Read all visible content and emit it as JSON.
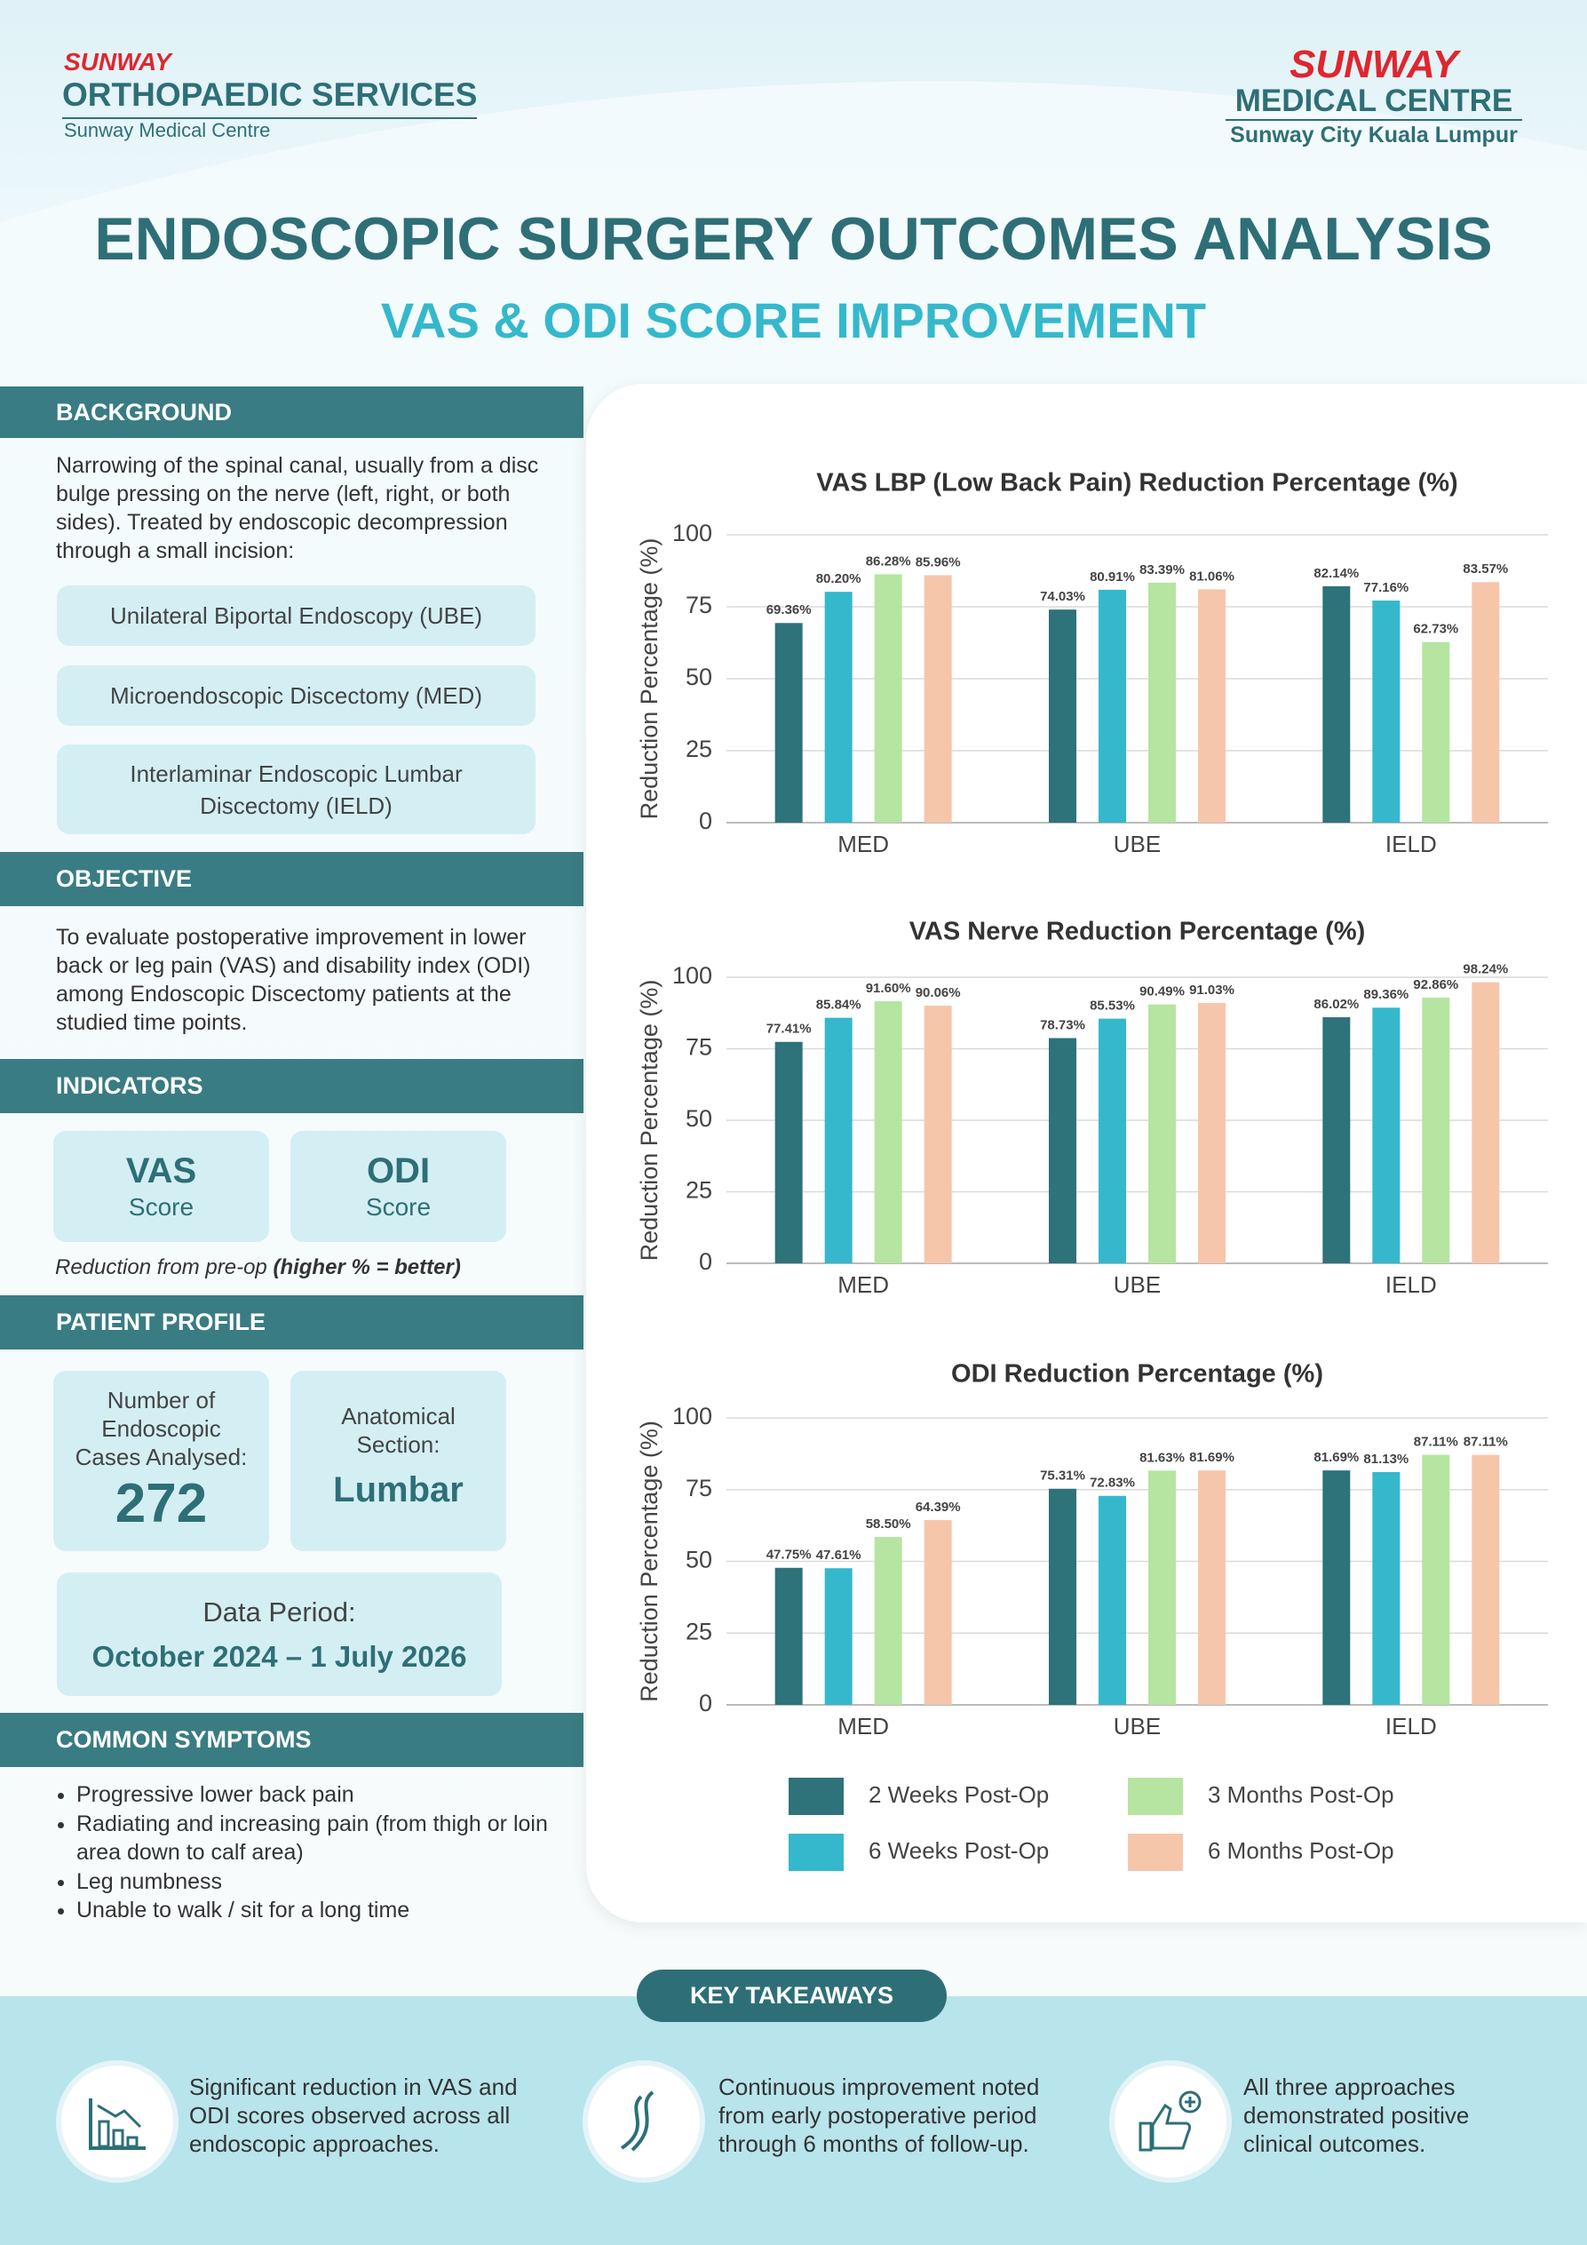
{
  "header": {
    "brand_left_top": "SUNWAY",
    "brand_left_main": "ORTHOPAEDIC SERVICES",
    "brand_left_sub": "Sunway Medical Centre",
    "brand_right_top": "SUNWAY",
    "brand_right_main": "MEDICAL CENTRE",
    "brand_right_sub": "Sunway City Kuala Lumpur",
    "title": "ENDOSCOPIC SURGERY OUTCOMES ANALYSIS",
    "subtitle": "VAS & ODI SCORE IMPROVEMENT"
  },
  "background": {
    "heading": "BACKGROUND",
    "text": "Narrowing of the spinal canal, usually from a disc bulge pressing on the nerve (left, right, or both sides). Treated by endoscopic decompression through a small incision:",
    "approaches": [
      "Unilateral Biportal Endoscopy (UBE)",
      "Microendoscopic Discectomy (MED)",
      "Interlaminar Endoscopic Lumbar Discectomy (IELD)"
    ]
  },
  "objective": {
    "heading": "OBJECTIVE",
    "text": "To evaluate postoperative improvement in lower back or leg pain (VAS) and disability index (ODI) among Endoscopic Discectomy patients at the studied time points."
  },
  "indicators": {
    "heading": "INDICATORS",
    "items": [
      {
        "name": "VAS",
        "unit": "Score"
      },
      {
        "name": "ODI",
        "unit": "Score"
      }
    ],
    "note": "Reduction from pre-op",
    "note_emphasis": "(higher % = better)"
  },
  "patient_profile": {
    "heading": "PATIENT PROFILE",
    "cases_label": "Number of Endoscopic Cases Analysed:",
    "cases_value": 272,
    "section_label": "Anatomical Section:",
    "section_value": "Lumbar",
    "period_label": "Data Period:",
    "period_value": "October 2024 – 1 July 2026"
  },
  "symptoms": {
    "heading": "COMMON SYMPTOMS",
    "items": [
      "Progressive lower back pain",
      "Radiating and increasing pain (from thigh or loin area down to calf area)",
      "Leg numbness",
      "Unable to walk / sit for a long time"
    ]
  },
  "key_takeaways": {
    "heading": "KEY TAKEAWAYS",
    "items": [
      "Significant reduction in VAS and ODI scores observed across all endoscopic approaches.",
      "Continuous improvement noted from early postoperative period through 6 months of follow-up.",
      "All three approaches demonstrated positive clinical outcomes."
    ]
  },
  "chart_data": [
    {
      "type": "bar",
      "title": "VAS LBP (Low Back Pain) Reduction Percentage (%)",
      "y_label": "Reduction Percentage (%)",
      "categories": [
        "MED",
        "UBE",
        "IELD"
      ],
      "ylim": [
        0,
        100
      ],
      "yticks": [
        0,
        25,
        50,
        75,
        100
      ],
      "grid": true,
      "series": [
        {
          "name": "2 Weeks Post-Op",
          "color": "#2e727a",
          "values": [
            69.36,
            74.03,
            82.14
          ],
          "value_labels": [
            "69.36%",
            "74.03%",
            "82.14%"
          ]
        },
        {
          "name": "6 Weeks Post-Op",
          "color": "#35b8cc",
          "values": [
            80.2,
            80.91,
            77.16
          ],
          "value_labels": [
            "80.20%",
            "80.91%",
            "77.16%"
          ]
        },
        {
          "name": "3 Months Post-Op",
          "color": "#b5e5a0",
          "values": [
            86.28,
            83.39,
            62.73
          ],
          "value_labels": [
            "86.28%",
            "83.39%",
            "62.73%"
          ]
        },
        {
          "name": "6 Months Post-Op",
          "color": "#f6c6ab",
          "values": [
            85.96,
            81.06,
            83.57
          ],
          "value_labels": [
            "85.96%",
            "81.06%",
            "83.57%"
          ]
        }
      ]
    },
    {
      "type": "bar",
      "title": "VAS Nerve Reduction Percentage (%)",
      "y_label": "Reduction Percentage (%)",
      "categories": [
        "MED",
        "UBE",
        "IELD"
      ],
      "ylim": [
        0,
        100
      ],
      "yticks": [
        0,
        25,
        50,
        75,
        100
      ],
      "grid": true,
      "series": [
        {
          "color": "#2e727a",
          "values": [
            77.41,
            78.73,
            86.02
          ],
          "value_labels": [
            "77.41%",
            "78.73%",
            "86.02%"
          ]
        },
        {
          "color": "#35b8cc",
          "values": [
            85.84,
            85.53,
            89.36
          ],
          "value_labels": [
            "85.84%",
            "85.53%",
            "89.36%"
          ]
        },
        {
          "color": "#b5e5a0",
          "values": [
            91.6,
            90.49,
            92.86
          ],
          "value_labels": [
            "91.60%",
            "90.49%",
            "92.86%"
          ]
        },
        {
          "color": "#f6c6ab",
          "values": [
            90.06,
            91.03,
            98.24
          ],
          "value_labels": [
            "90.06%",
            "91.03%",
            "98.24%"
          ]
        }
      ]
    },
    {
      "type": "bar",
      "title": "ODI Reduction Percentage (%)",
      "y_label": "Reduction Percentage (%)",
      "categories": [
        "MED",
        "UBE",
        "IELD"
      ],
      "ylim": [
        0,
        100
      ],
      "yticks": [
        0,
        25,
        50,
        75,
        100
      ],
      "grid": true,
      "series": [
        {
          "color": "#2e727a",
          "values": [
            47.75,
            75.31,
            81.69
          ],
          "value_labels": [
            "47.75%",
            "75.31%",
            "81.69%"
          ]
        },
        {
          "color": "#35b8cc",
          "values": [
            47.61,
            72.83,
            81.13
          ],
          "value_labels": [
            "47.61%",
            "72.83%",
            "81.13%"
          ]
        },
        {
          "color": "#b5e5a0",
          "values": [
            58.5,
            81.63,
            87.11
          ],
          "value_labels": [
            "58.50%",
            "81.63%",
            "87.11%"
          ]
        },
        {
          "color": "#f6c6ab",
          "values": [
            64.39,
            81.69,
            87.11
          ],
          "value_labels": [
            "64.39%",
            "81.69%",
            "87.11%"
          ]
        }
      ]
    }
  ]
}
